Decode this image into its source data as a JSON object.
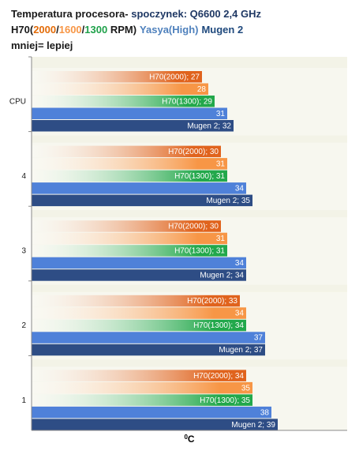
{
  "chart_data": {
    "type": "bar",
    "orientation": "horizontal",
    "title": [
      "Temperatura procesora-",
      "spoczynek: Q6600 2,4 GHz"
    ],
    "subtitle": [
      "H70(",
      "2000",
      "/",
      "1600",
      "/",
      "1300",
      " RPM)",
      "Yasya(High)",
      "Mugen 2"
    ],
    "subtitle_colors": [
      "#1a1a1a",
      "#e36c09",
      "#1a1a1a",
      "#f79646",
      "#1a1a1a",
      "#1fa14a",
      "#1a1a1a",
      "#4f81bd",
      "#1f497d"
    ],
    "note": "mniej= lepiej",
    "x_label": {
      "sup": "0",
      "text": "C"
    },
    "categories": [
      "CPU",
      "4",
      "3",
      "2",
      "1"
    ],
    "xlim": [
      0,
      50
    ],
    "series": [
      {
        "color": "#e0631d",
        "values": [
          27,
          30,
          30,
          33,
          34
        ],
        "value_labels": [
          "H70(2000); 27",
          "H70(2000); 30",
          "H70(2000); 30",
          "H70(2000); 33",
          "H70(2000); 34"
        ]
      },
      {
        "color": "#f79646",
        "values": [
          28,
          31,
          31,
          34,
          35
        ]
      },
      {
        "color": "#22a84b",
        "values": [
          29,
          31,
          31,
          34,
          35
        ],
        "value_labels": [
          "H70(1300); 29",
          "H70(1300); 31",
          "H70(1300); 31",
          "H70(1300); 34",
          "H70(1300); 35"
        ]
      },
      {
        "color": "#4f81d9",
        "values": [
          31,
          34,
          34,
          37,
          38
        ]
      },
      {
        "color": "#2e4d85",
        "values": [
          32,
          35,
          34,
          37,
          39
        ],
        "value_labels": [
          "Mugen 2; 32",
          "Mugen 2; 35",
          "Mugen 2; 34",
          "Mugen 2; 37",
          "Mugen 2; 39"
        ]
      }
    ]
  }
}
